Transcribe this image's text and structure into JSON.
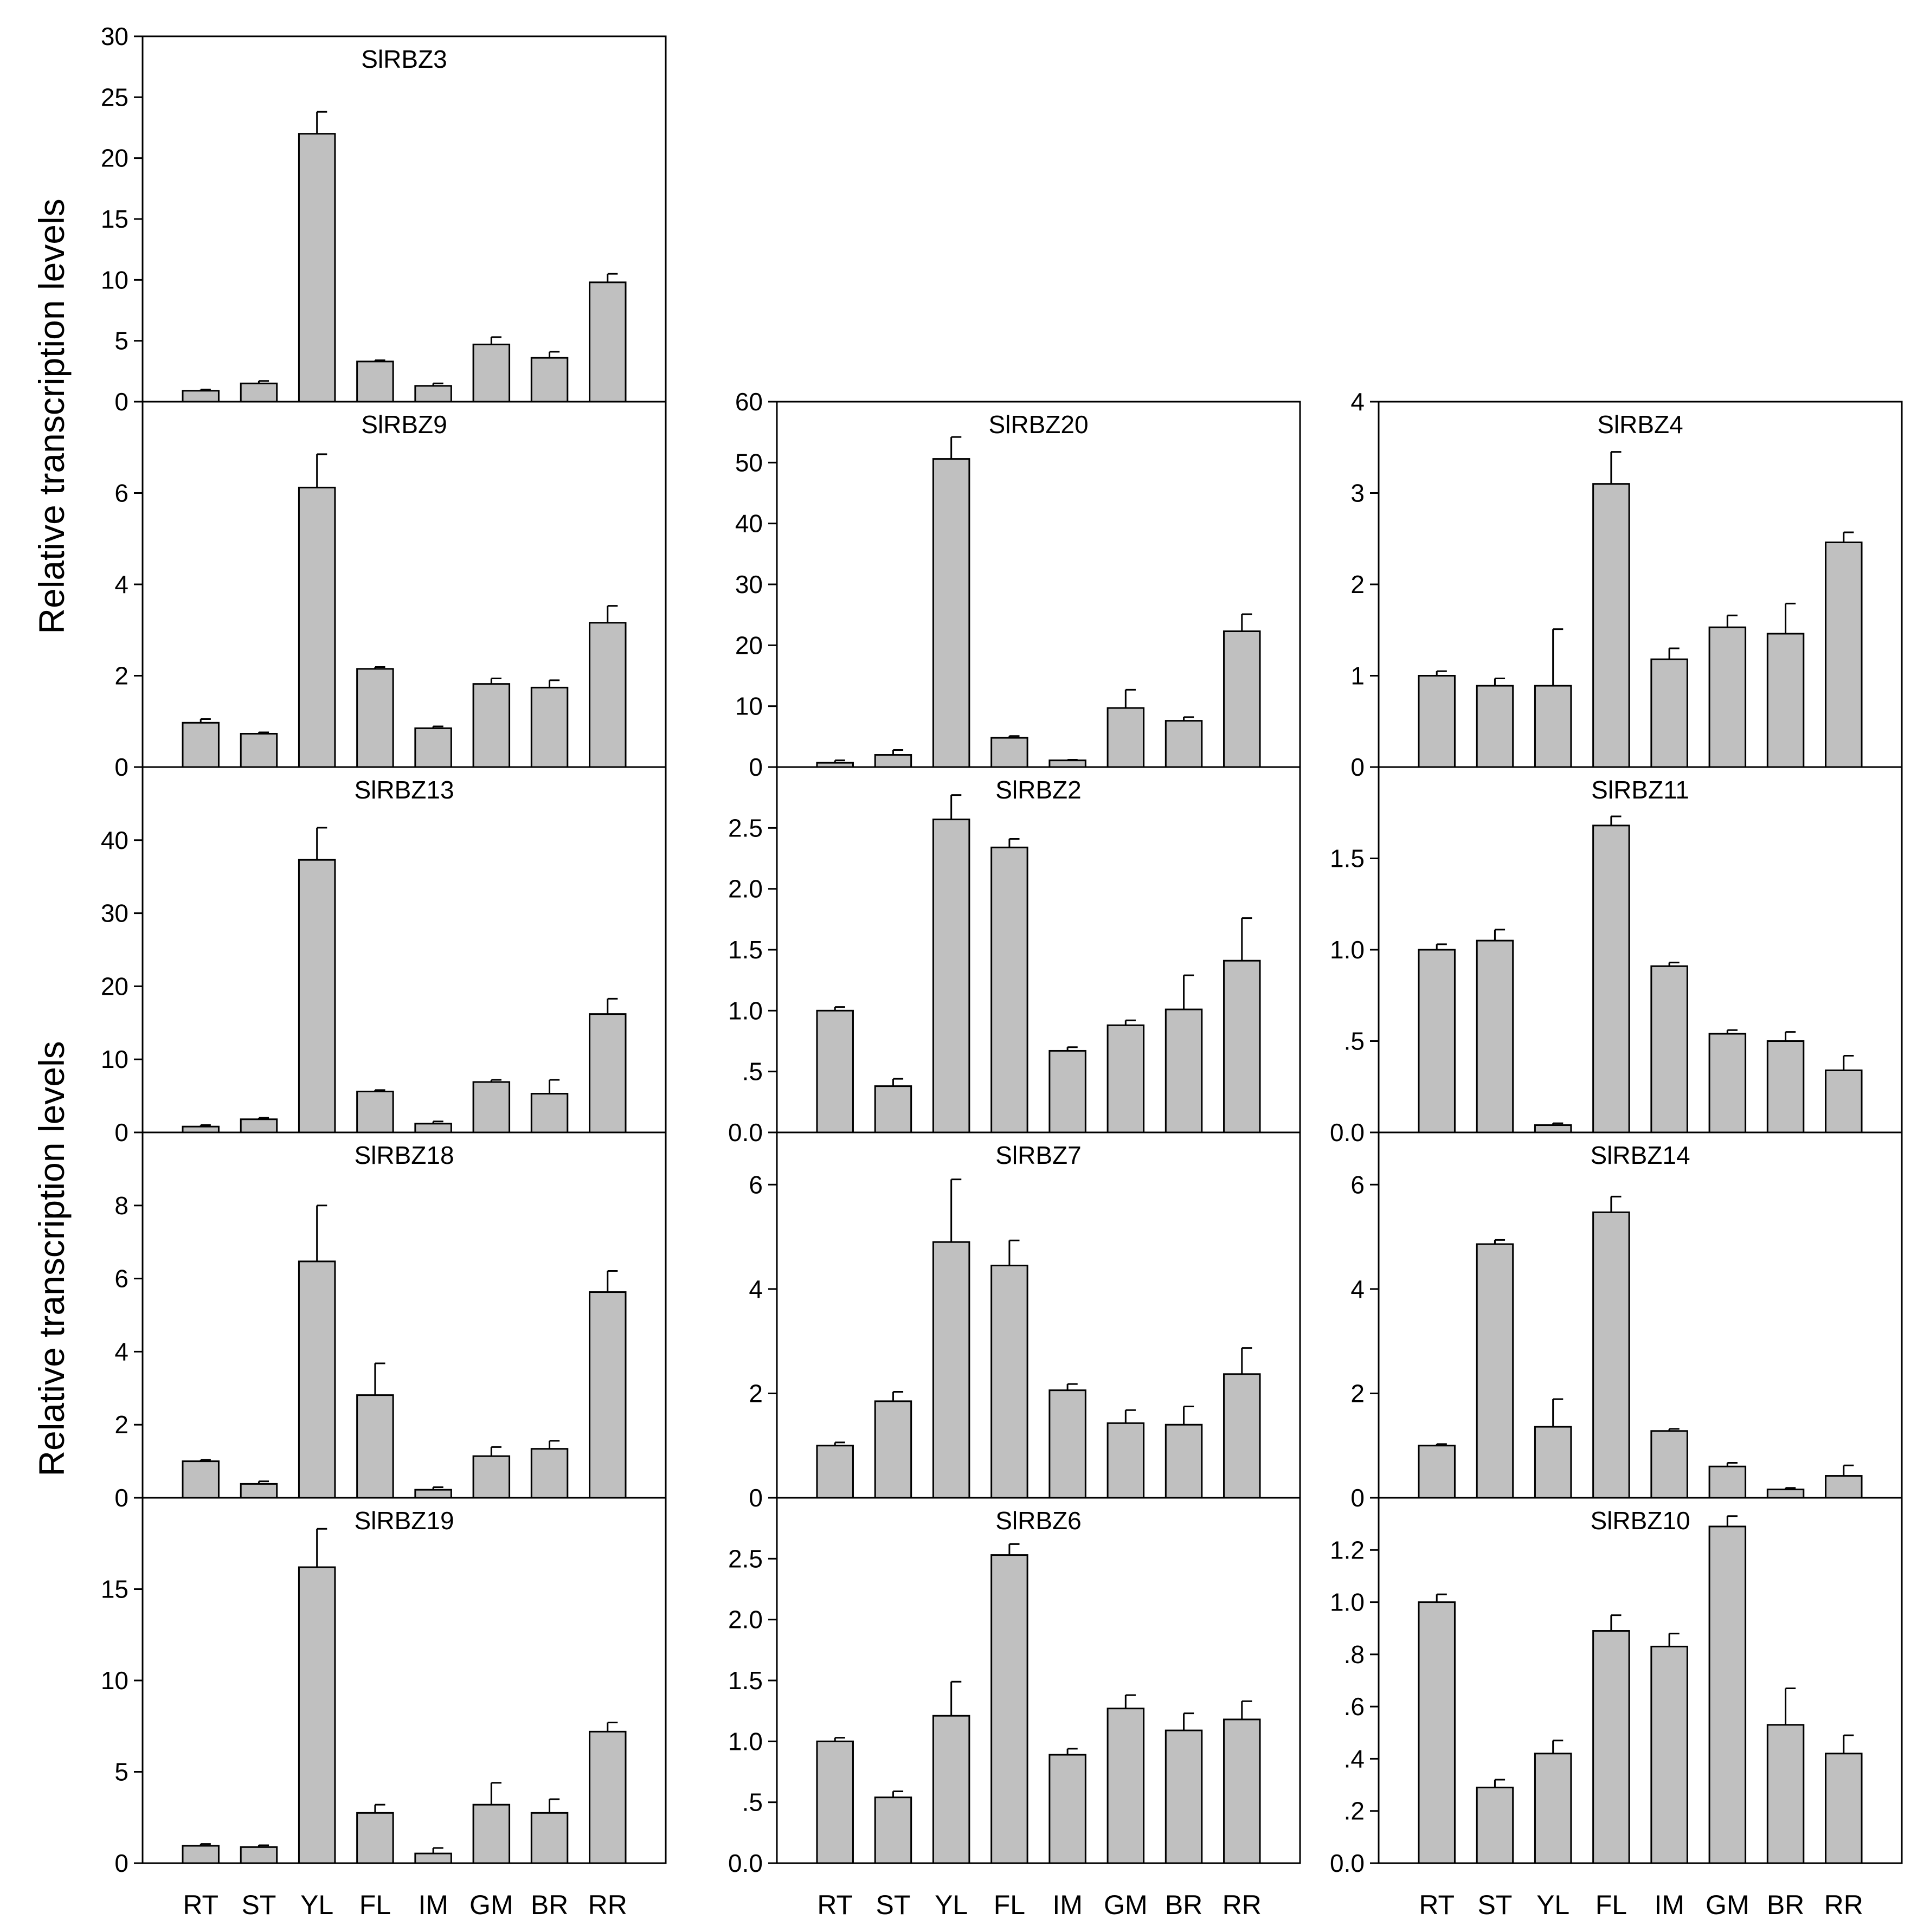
{
  "figure": {
    "y_axis_title_upper": "Relative transcription levels",
    "y_axis_title_lower": "Relative transcription levels",
    "colors": {
      "bar_fill": "#c0c0c0",
      "stroke": "#000000",
      "background": "#ffffff"
    }
  },
  "chart_data": [
    {
      "type": "bar",
      "title": "SlRBZ3",
      "categories": [
        "RT",
        "ST",
        "YL",
        "FL",
        "IM",
        "GM",
        "BR",
        "RR"
      ],
      "values": [
        0.9,
        1.5,
        22.0,
        3.3,
        1.3,
        4.7,
        3.6,
        9.8
      ],
      "errors": [
        0.1,
        0.2,
        1.8,
        0.1,
        0.2,
        0.6,
        0.5,
        0.7
      ],
      "ylim": [
        0,
        30
      ],
      "yticks": [
        0,
        5,
        10,
        15,
        20,
        25,
        30
      ],
      "yticklabels": [
        "0",
        "5",
        "10",
        "15",
        "20",
        "25",
        "30"
      ],
      "xlabel": "",
      "ylabel": "Relative transcription levels"
    },
    {
      "type": "bar",
      "title": "SlRBZ9",
      "categories": [
        "RT",
        "ST",
        "YL",
        "FL",
        "IM",
        "GM",
        "BR",
        "RR"
      ],
      "values": [
        0.97,
        0.73,
        6.12,
        2.15,
        0.85,
        1.82,
        1.74,
        3.16
      ],
      "errors": [
        0.08,
        0.03,
        0.73,
        0.04,
        0.04,
        0.12,
        0.16,
        0.37
      ],
      "ylim": [
        0,
        8
      ],
      "yticks": [
        0,
        2,
        4,
        6
      ],
      "yticklabels": [
        "0",
        "2",
        "4",
        "6"
      ],
      "xlabel": "",
      "ylabel": "Relative transcription levels"
    },
    {
      "type": "bar",
      "title": "SlRBZ13",
      "categories": [
        "RT",
        "ST",
        "YL",
        "FL",
        "IM",
        "GM",
        "BR",
        "RR"
      ],
      "values": [
        0.8,
        1.8,
        37.3,
        5.6,
        1.2,
        6.9,
        5.3,
        16.2
      ],
      "errors": [
        0.2,
        0.2,
        4.4,
        0.2,
        0.3,
        0.3,
        1.9,
        2.1
      ],
      "ylim": [
        0,
        50
      ],
      "yticks": [
        0,
        10,
        20,
        30,
        40
      ],
      "yticklabels": [
        "0",
        "10",
        "20",
        "30",
        "40"
      ],
      "xlabel": "",
      "ylabel": "Relative transcription levels"
    },
    {
      "type": "bar",
      "title": "SlRBZ18",
      "categories": [
        "RT",
        "ST",
        "YL",
        "FL",
        "IM",
        "GM",
        "BR",
        "RR"
      ],
      "values": [
        1.0,
        0.38,
        6.47,
        2.81,
        0.22,
        1.14,
        1.34,
        5.63
      ],
      "errors": [
        0.04,
        0.07,
        1.53,
        0.87,
        0.07,
        0.25,
        0.22,
        0.58
      ],
      "ylim": [
        0,
        10
      ],
      "yticks": [
        0,
        2,
        4,
        6,
        8
      ],
      "yticklabels": [
        "0",
        "2",
        "4",
        "6",
        "8"
      ],
      "xlabel": "",
      "ylabel": "Relative transcription levels"
    },
    {
      "type": "bar",
      "title": "SlRBZ19",
      "categories": [
        "RT",
        "ST",
        "YL",
        "FL",
        "IM",
        "GM",
        "BR",
        "RR"
      ],
      "values": [
        0.95,
        0.88,
        16.2,
        2.75,
        0.53,
        3.2,
        2.75,
        7.2
      ],
      "errors": [
        0.1,
        0.1,
        2.1,
        0.45,
        0.3,
        1.2,
        0.75,
        0.5
      ],
      "ylim": [
        0,
        20
      ],
      "yticks": [
        0,
        5,
        10,
        15
      ],
      "yticklabels": [
        "0",
        "5",
        "10",
        "15"
      ],
      "xlabel": "RT ST YL FL IM GM BR RR",
      "ylabel": "Relative transcription levels"
    },
    {
      "type": "bar",
      "title": "SlRBZ20",
      "categories": [
        "RT",
        "ST",
        "YL",
        "FL",
        "IM",
        "GM",
        "BR",
        "RR"
      ],
      "values": [
        0.7,
        2.0,
        50.6,
        4.8,
        1.1,
        9.7,
        7.6,
        22.3
      ],
      "errors": [
        0.4,
        0.8,
        3.6,
        0.3,
        0.1,
        3.0,
        0.6,
        2.8
      ],
      "ylim": [
        0,
        60
      ],
      "yticks": [
        0,
        10,
        20,
        30,
        40,
        50,
        60
      ],
      "yticklabels": [
        "0",
        "10",
        "20",
        "30",
        "40",
        "50",
        "60"
      ],
      "xlabel": "",
      "ylabel": ""
    },
    {
      "type": "bar",
      "title": "SlRBZ2",
      "categories": [
        "RT",
        "ST",
        "YL",
        "FL",
        "IM",
        "GM",
        "BR",
        "RR"
      ],
      "values": [
        1.0,
        0.38,
        2.57,
        2.34,
        0.67,
        0.88,
        1.01,
        1.41
      ],
      "errors": [
        0.03,
        0.06,
        0.2,
        0.07,
        0.03,
        0.04,
        0.28,
        0.35
      ],
      "ylim": [
        0,
        3.0
      ],
      "yticks": [
        0,
        0.5,
        1.0,
        1.5,
        2.0,
        2.5
      ],
      "yticklabels": [
        "0.0",
        ".5",
        "1.0",
        "1.5",
        "2.0",
        "2.5"
      ],
      "xlabel": "",
      "ylabel": ""
    },
    {
      "type": "bar",
      "title": "SlRBZ7",
      "categories": [
        "RT",
        "ST",
        "YL",
        "FL",
        "IM",
        "GM",
        "BR",
        "RR"
      ],
      "values": [
        1.0,
        1.85,
        4.9,
        4.45,
        2.06,
        1.43,
        1.4,
        2.37
      ],
      "errors": [
        0.06,
        0.18,
        1.2,
        0.48,
        0.12,
        0.25,
        0.35,
        0.5
      ],
      "ylim": [
        0,
        7
      ],
      "yticks": [
        0,
        2,
        4,
        6
      ],
      "yticklabels": [
        "0",
        "2",
        "4",
        "6"
      ],
      "xlabel": "",
      "ylabel": ""
    },
    {
      "type": "bar",
      "title": "SlRBZ6",
      "categories": [
        "RT",
        "ST",
        "YL",
        "FL",
        "IM",
        "GM",
        "BR",
        "RR"
      ],
      "values": [
        1.0,
        0.54,
        1.21,
        2.53,
        0.89,
        1.27,
        1.09,
        1.18
      ],
      "errors": [
        0.03,
        0.05,
        0.28,
        0.09,
        0.05,
        0.11,
        0.14,
        0.15
      ],
      "ylim": [
        0,
        3.0
      ],
      "yticks": [
        0,
        0.5,
        1.0,
        1.5,
        2.0,
        2.5
      ],
      "yticklabels": [
        "0.0",
        ".5",
        "1.0",
        "1.5",
        "2.0",
        "2.5"
      ],
      "xlabel": "RT ST YL FL IM GM BR RR",
      "ylabel": ""
    },
    {
      "type": "bar",
      "title": "SlRBZ4",
      "categories": [
        "RT",
        "ST",
        "YL",
        "FL",
        "IM",
        "GM",
        "BR",
        "RR"
      ],
      "values": [
        1.0,
        0.89,
        0.89,
        3.1,
        1.18,
        1.53,
        1.46,
        2.46
      ],
      "errors": [
        0.05,
        0.08,
        0.62,
        0.35,
        0.12,
        0.13,
        0.33,
        0.11
      ],
      "ylim": [
        0,
        4
      ],
      "yticks": [
        0,
        1,
        2,
        3,
        4
      ],
      "yticklabels": [
        "0",
        "1",
        "2",
        "3",
        "4"
      ],
      "xlabel": "",
      "ylabel": ""
    },
    {
      "type": "bar",
      "title": "SlRBZ11",
      "categories": [
        "RT",
        "ST",
        "YL",
        "FL",
        "IM",
        "GM",
        "BR",
        "RR"
      ],
      "values": [
        1.0,
        1.05,
        0.04,
        1.68,
        0.91,
        0.54,
        0.5,
        0.34
      ],
      "errors": [
        0.03,
        0.06,
        0.01,
        0.05,
        0.02,
        0.02,
        0.05,
        0.08
      ],
      "ylim": [
        0,
        2.0
      ],
      "yticks": [
        0,
        0.5,
        1.0,
        1.5
      ],
      "yticklabels": [
        "0.0",
        ".5",
        "1.0",
        "1.5"
      ],
      "xlabel": "",
      "ylabel": ""
    },
    {
      "type": "bar",
      "title": "SlRBZ14",
      "categories": [
        "RT",
        "ST",
        "YL",
        "FL",
        "IM",
        "GM",
        "BR",
        "RR"
      ],
      "values": [
        1.0,
        4.86,
        1.36,
        5.47,
        1.28,
        0.6,
        0.16,
        0.42
      ],
      "errors": [
        0.03,
        0.08,
        0.53,
        0.3,
        0.04,
        0.07,
        0.03,
        0.2
      ],
      "ylim": [
        0,
        7
      ],
      "yticks": [
        0,
        2,
        4,
        6
      ],
      "yticklabels": [
        "0",
        "2",
        "4",
        "6"
      ],
      "xlabel": "",
      "ylabel": ""
    },
    {
      "type": "bar",
      "title": "SlRBZ10",
      "categories": [
        "RT",
        "ST",
        "YL",
        "FL",
        "IM",
        "GM",
        "BR",
        "RR"
      ],
      "values": [
        1.0,
        0.29,
        0.42,
        0.89,
        0.83,
        1.29,
        0.53,
        0.42
      ],
      "errors": [
        0.03,
        0.03,
        0.05,
        0.06,
        0.05,
        0.04,
        0.14,
        0.07
      ],
      "ylim": [
        0,
        1.4
      ],
      "yticks": [
        0,
        0.2,
        0.4,
        0.6,
        0.8,
        1.0,
        1.2
      ],
      "yticklabels": [
        "0.0",
        ".2",
        ".4",
        ".6",
        ".8",
        "1.0",
        "1.2"
      ],
      "xlabel": "RT ST YL FL IM GM BR RR",
      "ylabel": ""
    }
  ]
}
